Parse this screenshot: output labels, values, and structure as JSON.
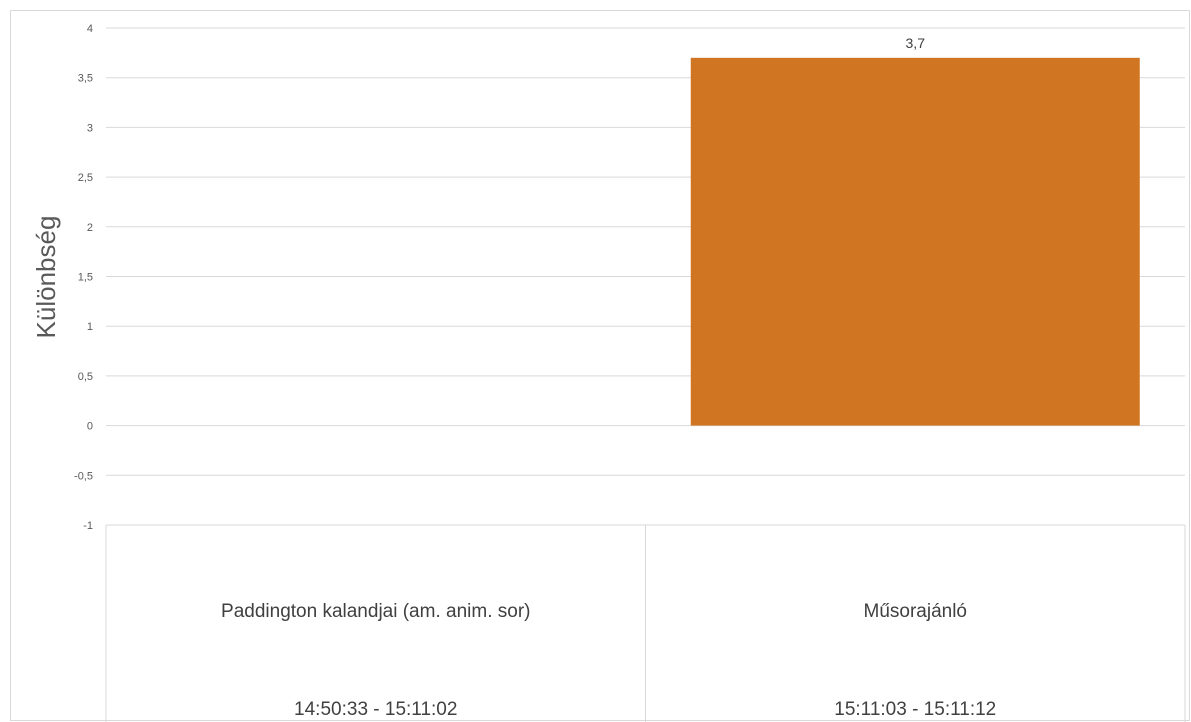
{
  "chart_data": {
    "type": "bar",
    "ylabel": "Különbség",
    "ylim": [
      -1,
      4
    ],
    "yticks": [
      4,
      3.5,
      3,
      2.5,
      2,
      1.5,
      1,
      0.5,
      0,
      -0.5,
      -1
    ],
    "ytick_labels": [
      "4",
      "3,5",
      "3",
      "2,5",
      "2",
      "1,5",
      "1",
      "0,5",
      "0",
      "-0,5",
      "-1"
    ],
    "categories": [
      {
        "name": "Paddington kalandjai (am. anim. sor)",
        "time": "14:50:33 - 15:11:02"
      },
      {
        "name": "Műsorajánló",
        "time": "15:11:03 - 15:11:12"
      }
    ],
    "values": [
      0,
      3.7
    ],
    "data_labels": [
      "",
      "3,7"
    ],
    "bar_color": "#d07622",
    "grid": true
  }
}
